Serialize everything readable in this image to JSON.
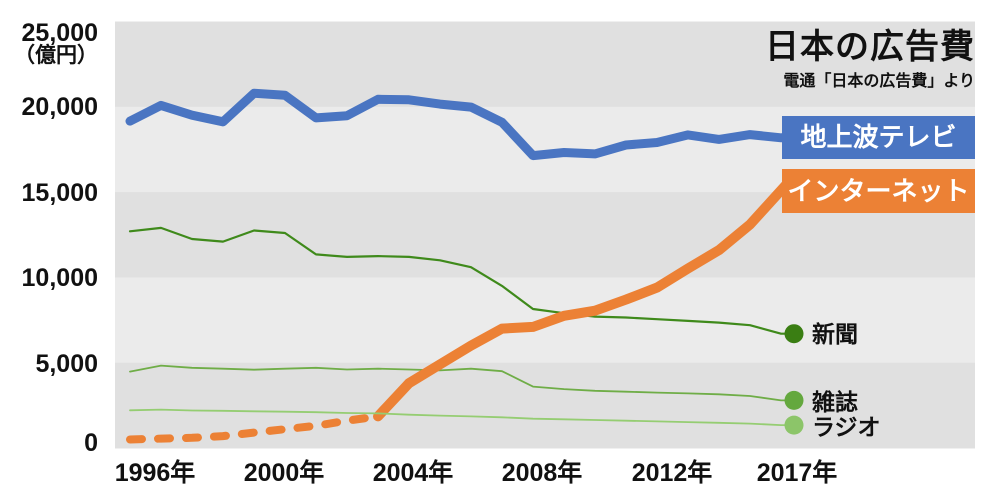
{
  "header": {
    "title": "日本の広告費",
    "subtitle": "電通「日本の広告費」より"
  },
  "y_axis": {
    "unit": "（億円）",
    "ticks": [
      "25,000",
      "20,000",
      "15,000",
      "10,000",
      "5,000",
      "0"
    ]
  },
  "x_axis": {
    "ticks": [
      "1996年",
      "2000年",
      "2004年",
      "2008年",
      "2012年",
      "2017年"
    ]
  },
  "legend": {
    "tv_label": "地上波テレビ",
    "internet_label": "インターネット"
  },
  "end_labels": {
    "newspaper": "新聞",
    "magazine": "雑誌",
    "radio": "ラジオ"
  },
  "colors": {
    "tv": "#4a75c2",
    "internet": "#ec8135",
    "newspaper_line": "#3f8a1b",
    "newspaper_dot": "#3a7e13",
    "magazine_line": "#6fad47",
    "magazine_dot": "#64a83e",
    "radio_line": "#95cd72",
    "radio_dot": "#8cc569",
    "band_dark": "#e0e0e0",
    "band_light": "#ebebeb",
    "text": "#111111",
    "legend_text": "#ffffff"
  },
  "chart_data": {
    "type": "line",
    "title": "日本の広告費",
    "source": "電通「日本の広告費」より",
    "unit": "億円",
    "ylim": [
      0,
      25000
    ],
    "grid": "alternating horizontal bands every 5000",
    "legend_position": "right, labels at line ends",
    "x": [
      1996,
      1997,
      1998,
      1999,
      2000,
      2001,
      2002,
      2003,
      2004,
      2005,
      2006,
      2007,
      2008,
      2009,
      2010,
      2011,
      2012,
      2013,
      2014,
      2015,
      2016,
      2017
    ],
    "x_tick_years": [
      1996,
      2000,
      2004,
      2008,
      2012,
      2017
    ],
    "series": [
      {
        "key": "tv",
        "name": "地上波テレビ",
        "style": "thick solid",
        "values": [
          19160,
          20080,
          19510,
          19120,
          20790,
          20680,
          19350,
          19480,
          20440,
          20410,
          20160,
          19980,
          19090,
          17140,
          17320,
          17240,
          17760,
          17910,
          18350,
          18090,
          18370,
          18180
        ]
      },
      {
        "key": "internet",
        "name": "インターネット",
        "style": "thick, dashed 1996-2003 then solid",
        "dashed_through_year": 2003,
        "values": [
          500,
          550,
          600,
          700,
          900,
          1100,
          1300,
          1600,
          1850,
          3800,
          4900,
          6000,
          7000,
          7100,
          7750,
          8050,
          8700,
          9400,
          10520,
          11600,
          13100,
          15100
        ]
      },
      {
        "key": "newspaper",
        "name": "新聞",
        "style": "thin solid, end dot",
        "values": [
          12700,
          12900,
          12250,
          12100,
          12750,
          12600,
          11350,
          11200,
          11250,
          11200,
          11000,
          10600,
          9500,
          8150,
          7900,
          7700,
          7650,
          7550,
          7450,
          7350,
          7200,
          6700
        ]
      },
      {
        "key": "magazine",
        "name": "雑誌",
        "style": "thin solid, end dot",
        "values": [
          4480,
          4830,
          4700,
          4650,
          4590,
          4650,
          4700,
          4600,
          4650,
          4600,
          4550,
          4650,
          4500,
          3600,
          3450,
          3350,
          3300,
          3250,
          3200,
          3150,
          3050,
          2790
        ]
      },
      {
        "key": "radio",
        "name": "ラジオ",
        "style": "thin solid, end dot",
        "values": [
          2210,
          2250,
          2200,
          2180,
          2150,
          2130,
          2100,
          2050,
          2030,
          1950,
          1900,
          1850,
          1800,
          1720,
          1680,
          1640,
          1600,
          1560,
          1520,
          1480,
          1430,
          1340
        ]
      }
    ]
  }
}
